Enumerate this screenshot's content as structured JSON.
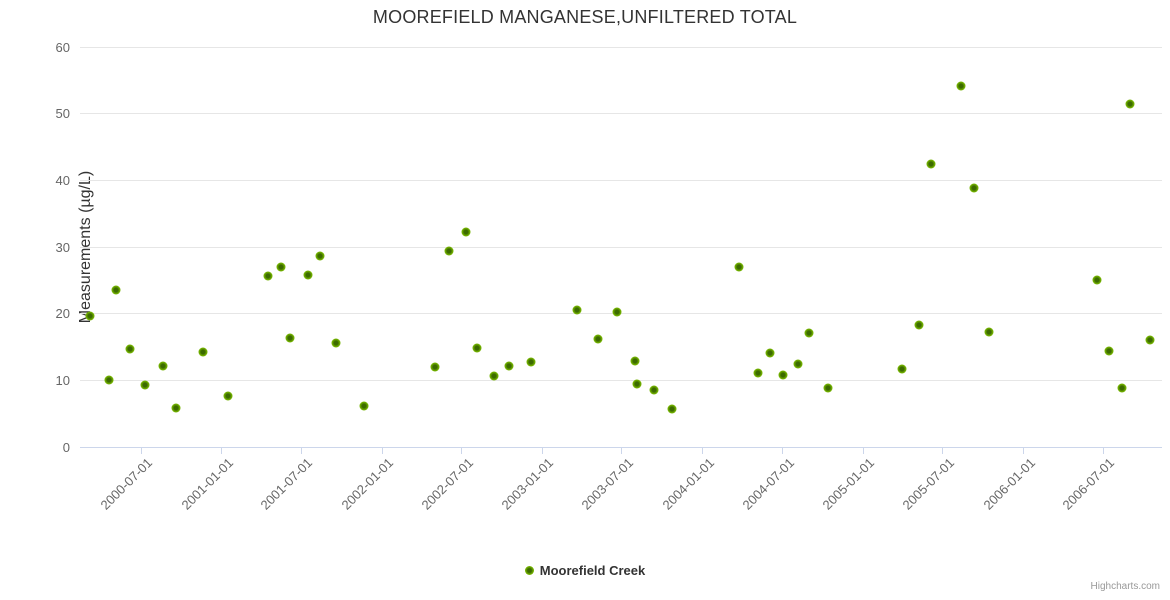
{
  "credits": "Highcharts.com",
  "colors": {
    "marker_outer": "#74b300",
    "marker_core": "#3c6b00",
    "gridline": "#e6e6e6",
    "axis_line": "#ccd6eb",
    "tick_label": "#666666",
    "title_text": "#333333",
    "credits_text": "#999999"
  },
  "chart_data": {
    "type": "scatter",
    "title": "MOOREFIELD MANGANESE,UNFILTERED TOTAL",
    "xlabel": "",
    "ylabel": "Measurements (µg/L)",
    "ylim": [
      0,
      60
    ],
    "yticks": [
      0,
      10,
      20,
      30,
      40,
      50,
      60
    ],
    "grid": true,
    "legend_position": "bottom-center",
    "x_axis": {
      "min": "2000-02-14",
      "max": "2006-11-13",
      "tick_labels": [
        "2000-07-01",
        "2001-01-01",
        "2001-07-01",
        "2002-01-01",
        "2002-07-01",
        "2003-01-01",
        "2003-07-01",
        "2004-01-01",
        "2004-07-01",
        "2005-01-01",
        "2005-07-01",
        "2006-01-01",
        "2006-07-01"
      ]
    },
    "series": [
      {
        "name": "Moorefield Creek",
        "color": "#74b300",
        "points": [
          {
            "x": "2000-03-07",
            "y": 19.6
          },
          {
            "x": "2000-04-19",
            "y": 10.1
          },
          {
            "x": "2000-05-05",
            "y": 23.5
          },
          {
            "x": "2000-06-06",
            "y": 14.7
          },
          {
            "x": "2000-07-12",
            "y": 9.3
          },
          {
            "x": "2000-08-20",
            "y": 12.1
          },
          {
            "x": "2000-09-20",
            "y": 5.9
          },
          {
            "x": "2000-11-20",
            "y": 14.3
          },
          {
            "x": "2001-01-17",
            "y": 7.6
          },
          {
            "x": "2001-04-17",
            "y": 25.6
          },
          {
            "x": "2001-05-17",
            "y": 27.0
          },
          {
            "x": "2001-06-07",
            "y": 16.4
          },
          {
            "x": "2001-07-17",
            "y": 25.8
          },
          {
            "x": "2001-08-14",
            "y": 28.6
          },
          {
            "x": "2001-09-19",
            "y": 15.6
          },
          {
            "x": "2001-11-22",
            "y": 6.1
          },
          {
            "x": "2002-05-03",
            "y": 12.0
          },
          {
            "x": "2002-06-03",
            "y": 29.4
          },
          {
            "x": "2002-07-11",
            "y": 32.3
          },
          {
            "x": "2002-08-07",
            "y": 14.8
          },
          {
            "x": "2002-09-13",
            "y": 10.7
          },
          {
            "x": "2002-10-17",
            "y": 12.2
          },
          {
            "x": "2002-12-06",
            "y": 12.8
          },
          {
            "x": "2003-03-21",
            "y": 20.6
          },
          {
            "x": "2003-05-08",
            "y": 16.2
          },
          {
            "x": "2003-06-20",
            "y": 20.2
          },
          {
            "x": "2003-07-31",
            "y": 12.9
          },
          {
            "x": "2003-08-05",
            "y": 9.4
          },
          {
            "x": "2003-09-13",
            "y": 8.5
          },
          {
            "x": "2003-10-24",
            "y": 5.7
          },
          {
            "x": "2004-03-25",
            "y": 27.0
          },
          {
            "x": "2004-05-07",
            "y": 11.1
          },
          {
            "x": "2004-06-04",
            "y": 14.1
          },
          {
            "x": "2004-07-03",
            "y": 10.8
          },
          {
            "x": "2004-08-07",
            "y": 12.5
          },
          {
            "x": "2004-09-01",
            "y": 17.1
          },
          {
            "x": "2004-10-14",
            "y": 8.8
          },
          {
            "x": "2005-03-30",
            "y": 11.7
          },
          {
            "x": "2005-05-08",
            "y": 18.3
          },
          {
            "x": "2005-06-04",
            "y": 42.5
          },
          {
            "x": "2005-08-12",
            "y": 54.2
          },
          {
            "x": "2005-09-10",
            "y": 38.8
          },
          {
            "x": "2005-10-15",
            "y": 17.3
          },
          {
            "x": "2006-06-18",
            "y": 25.1
          },
          {
            "x": "2006-07-16",
            "y": 14.4
          },
          {
            "x": "2006-08-14",
            "y": 8.8
          },
          {
            "x": "2006-09-01",
            "y": 51.4
          },
          {
            "x": "2006-10-17",
            "y": 16.0
          }
        ]
      }
    ]
  }
}
